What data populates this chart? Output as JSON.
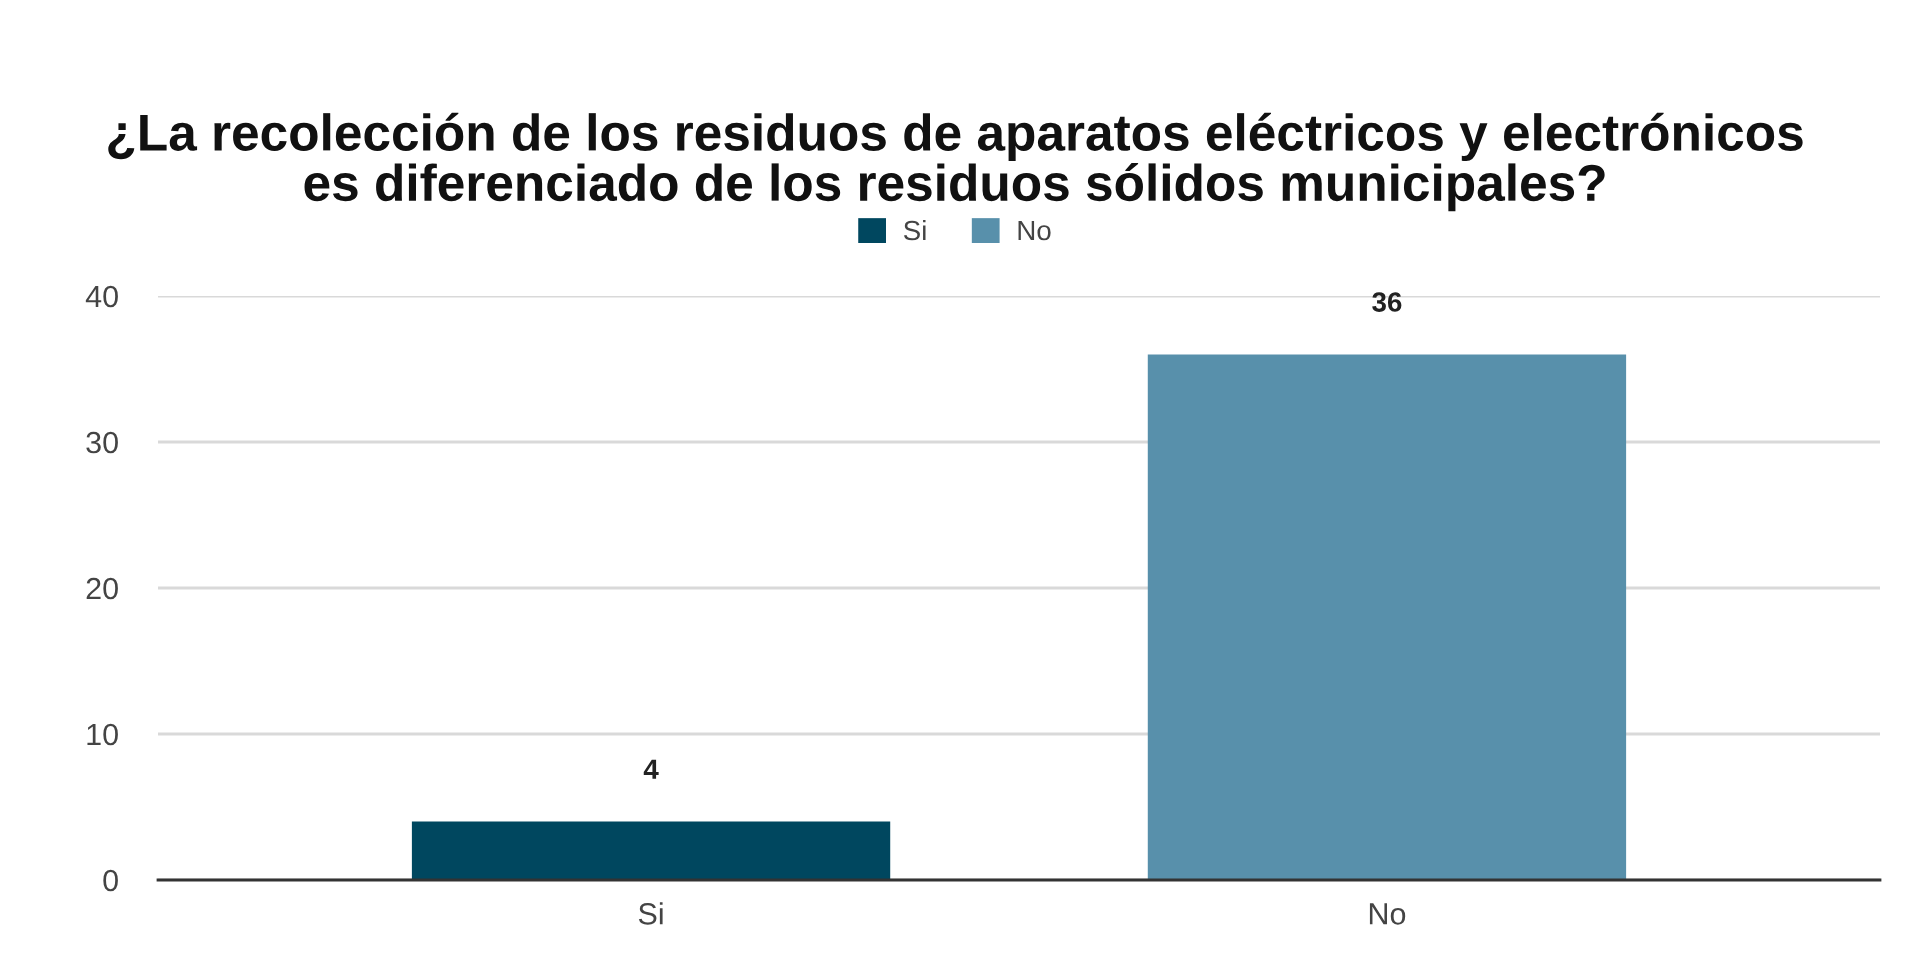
{
  "chart_data": {
    "type": "bar",
    "title": "¿La recolección de los residuos de aparatos eléctricos y electrónicos\nes diferenciado de los residuos sólidos municipales?",
    "categories": [
      "Si",
      "No"
    ],
    "series": [
      {
        "name": "Si",
        "color": "#00475f",
        "values": [
          4,
          null
        ]
      },
      {
        "name": "No",
        "color": "#5890ab",
        "values": [
          null,
          36
        ]
      }
    ],
    "stacked": true,
    "ylim": [
      0,
      40
    ],
    "yticks": [
      0,
      10,
      20,
      30,
      40
    ],
    "grid": "y",
    "legend": "top",
    "data_labels": true
  }
}
